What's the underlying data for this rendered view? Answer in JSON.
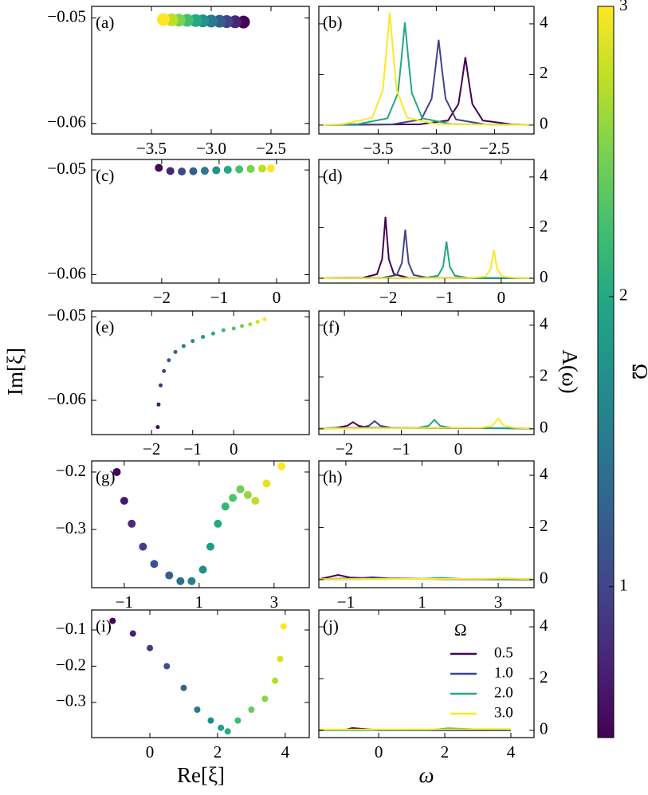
{
  "axis_labels": {
    "im": "Im[ξ]",
    "re": "Re[ξ]",
    "omega": "ω",
    "spectral": "A(ω)"
  },
  "chart_data": [
    {
      "type": "scatter",
      "label": "(a)",
      "x": [
        -2.73,
        -2.8,
        -2.87,
        -2.93,
        -3.0,
        -3.07,
        -3.13,
        -3.2,
        -3.27,
        -3.33,
        -3.4
      ],
      "y": [
        -0.05038,
        -0.05036,
        -0.05034,
        -0.05031,
        -0.05029,
        -0.05027,
        -0.05024,
        -0.05022,
        -0.0502,
        -0.05017,
        -0.05015
      ],
      "c": [
        0.5,
        0.75,
        1,
        1.25,
        1.5,
        1.75,
        2,
        2.25,
        2.5,
        2.75,
        3
      ],
      "xlim": [
        -4.0,
        -2.18
      ],
      "ylim": [
        -0.061,
        -0.0489
      ],
      "xticks": [
        {
          "value": -3.5,
          "label": "−3.5"
        },
        {
          "value": -3.0,
          "label": "−3.0"
        },
        {
          "value": -2.5,
          "label": "−2.5"
        }
      ],
      "yticks": [
        {
          "value": -0.06,
          "label": "−0.06"
        },
        {
          "value": -0.05,
          "label": "−0.05"
        }
      ]
    },
    {
      "type": "line",
      "label": "(b)",
      "series": [
        {
          "color": "#440154",
          "x": [
            -3.95,
            -3.15,
            -2.9,
            -2.81,
            -2.78,
            -2.75,
            -2.72,
            -2.69,
            -2.6,
            -2.35,
            -2.2
          ],
          "values": [
            0.01,
            0.03,
            0.18,
            0.83,
            1.72,
            2.68,
            1.72,
            0.83,
            0.18,
            0.03,
            0.01
          ]
        },
        {
          "color": "#414487",
          "x": [
            -3.95,
            -3.38,
            -3.13,
            -3.04,
            -3.01,
            -2.98,
            -2.95,
            -2.92,
            -2.83,
            -2.58,
            -2.2
          ],
          "values": [
            0.01,
            0.03,
            0.22,
            1.04,
            2.16,
            3.37,
            2.16,
            1.04,
            0.22,
            0.03,
            0.01
          ]
        },
        {
          "color": "#22a884",
          "x": [
            -3.95,
            -3.67,
            -3.42,
            -3.33,
            -3.3,
            -3.27,
            -3.24,
            -3.21,
            -3.12,
            -2.87,
            -2.2
          ],
          "values": [
            0.01,
            0.04,
            0.27,
            1.26,
            2.6,
            4.06,
            2.6,
            1.26,
            0.27,
            0.04,
            0.01
          ]
        },
        {
          "color": "#fde725",
          "x": [
            -3.95,
            -3.8,
            -3.55,
            -3.46,
            -3.43,
            -3.4,
            -3.37,
            -3.34,
            -3.25,
            -3.0,
            -2.2
          ],
          "values": [
            0.01,
            0.04,
            0.29,
            1.38,
            2.84,
            4.44,
            2.84,
            1.38,
            0.29,
            0.04,
            0.01
          ]
        }
      ],
      "xlim": [
        -4.01,
        -2.16
      ],
      "ylim": [
        -0.35,
        4.69
      ],
      "xticks": [
        {
          "value": -3.5,
          "label": "−3.5"
        },
        {
          "value": -3.0,
          "label": "−3.0"
        },
        {
          "value": -2.5,
          "label": "−2.5"
        }
      ],
      "yticks": [
        0,
        2,
        4
      ]
    },
    {
      "type": "scatter",
      "label": "(c)",
      "x": [
        -2.05,
        -1.85,
        -1.65,
        -1.45,
        -1.25,
        -1.05,
        -0.85,
        -0.65,
        -0.45,
        -0.25,
        -0.1
      ],
      "y": [
        -0.0498,
        -0.0501,
        -0.05015,
        -0.05012,
        -0.05008,
        -0.05003,
        -0.04998,
        -0.04994,
        -0.0499,
        -0.04987,
        -0.04985
      ],
      "c": [
        0.5,
        0.75,
        1,
        1.25,
        1.5,
        1.75,
        2,
        2.25,
        2.5,
        2.75,
        3
      ],
      "xlim": [
        -3.22,
        0.57
      ],
      "ylim": [
        -0.0608,
        -0.049
      ],
      "xticks": [
        {
          "value": -2,
          "label": "−2"
        },
        {
          "value": -1,
          "label": "−1"
        },
        0
      ],
      "yticks": [
        {
          "value": -0.06,
          "label": "−0.06"
        },
        {
          "value": -0.05,
          "label": "−0.05"
        }
      ]
    },
    {
      "type": "line",
      "label": "(d)",
      "series": [
        {
          "color": "#440154",
          "x": [
            -3.2,
            -2.45,
            -2.2,
            -2.11,
            -2.08,
            -2.05,
            -2.02,
            -1.99,
            -1.9,
            -1.65,
            0.55
          ],
          "values": [
            0,
            0.02,
            0.16,
            0.75,
            1.56,
            2.43,
            1.56,
            0.75,
            0.16,
            0.02,
            0
          ]
        },
        {
          "color": "#414487",
          "x": [
            -3.2,
            -2.1,
            -1.85,
            -1.76,
            -1.73,
            -1.7,
            -1.67,
            -1.64,
            -1.55,
            -1.3,
            0.55
          ],
          "values": [
            0,
            0.02,
            0.13,
            0.6,
            1.23,
            1.92,
            1.23,
            0.6,
            0.13,
            0.02,
            0
          ]
        },
        {
          "color": "#22a884",
          "x": [
            -3.2,
            -1.37,
            -1.12,
            -1.03,
            -1.0,
            -0.97,
            -0.94,
            -0.91,
            -0.82,
            -0.57,
            0.55
          ],
          "values": [
            0,
            0.01,
            0.1,
            0.45,
            0.93,
            1.45,
            0.93,
            0.45,
            0.1,
            0.01,
            0
          ]
        },
        {
          "color": "#fde725",
          "x": [
            -3.2,
            -0.53,
            -0.28,
            -0.19,
            -0.16,
            -0.13,
            -0.1,
            -0.07,
            0.02,
            0.27,
            0.55
          ],
          "values": [
            0,
            0.01,
            0.07,
            0.35,
            0.72,
            1.13,
            0.72,
            0.35,
            0.07,
            0.01,
            0
          ]
        }
      ],
      "xlim": [
        -3.23,
        0.58
      ],
      "ylim": [
        -0.19,
        4.69
      ],
      "xticks": [
        {
          "value": -2,
          "label": "−2"
        },
        {
          "value": -1,
          "label": "−1"
        },
        0
      ],
      "yticks": [
        0,
        2,
        4
      ]
    },
    {
      "type": "scatter",
      "label": "(e)",
      "x": [
        -1.85,
        -1.83,
        -1.78,
        -1.7,
        -1.58,
        -1.42,
        -1.22,
        -1.0,
        -0.75,
        -0.5,
        -0.25,
        0,
        0.2,
        0.4,
        0.58,
        0.75
      ],
      "y": [
        -0.0632,
        -0.0605,
        -0.0582,
        -0.0565,
        -0.0552,
        -0.0542,
        -0.0535,
        -0.0529,
        -0.0524,
        -0.052,
        -0.0516,
        -0.0514,
        -0.0511,
        -0.0509,
        -0.0506,
        -0.0503
      ],
      "c": [
        0.5,
        0.67,
        0.83,
        1,
        1.17,
        1.33,
        1.5,
        1.67,
        1.83,
        2,
        2.17,
        2.33,
        2.5,
        2.67,
        2.83,
        3
      ],
      "xlim": [
        -3.46,
        1.84
      ],
      "ylim": [
        -0.0641,
        -0.0493
      ],
      "xticks": [
        {
          "value": -2,
          "label": "−2"
        },
        {
          "value": -1,
          "label": "−1"
        },
        0
      ],
      "yticks": [
        {
          "value": -0.06,
          "label": "−0.06"
        },
        {
          "value": -0.05,
          "label": "−0.05"
        }
      ]
    },
    {
      "type": "line",
      "label": "(f)",
      "series": [
        {
          "color": "#440154",
          "x": [
            -2.45,
            -2.15,
            -1.95,
            -1.85,
            -1.75,
            -1.55,
            1.3
          ],
          "values": [
            0.02,
            0.04,
            0.12,
            0.26,
            0.12,
            0.04,
            0.02
          ]
        },
        {
          "color": "#414487",
          "x": [
            -2.45,
            -1.77,
            -1.57,
            -1.47,
            -1.37,
            -1.17,
            1.3
          ],
          "values": [
            0.02,
            0.04,
            0.12,
            0.3,
            0.12,
            0.04,
            0.02
          ]
        },
        {
          "color": "#22a884",
          "x": [
            -2.45,
            -0.72,
            -0.52,
            -0.42,
            -0.32,
            -0.12,
            1.3
          ],
          "values": [
            0.02,
            0.04,
            0.12,
            0.35,
            0.12,
            0.04,
            0.02
          ]
        },
        {
          "color": "#fde725",
          "x": [
            -2.45,
            0.4,
            0.6,
            0.7,
            0.8,
            1.0,
            1.3
          ],
          "values": [
            0.02,
            0.04,
            0.12,
            0.4,
            0.12,
            0.04,
            0.02
          ]
        }
      ],
      "xlim": [
        -2.45,
        1.33
      ],
      "ylim": [
        -0.22,
        4.55
      ],
      "xticks": [
        {
          "value": -2,
          "label": "−2"
        },
        {
          "value": -1,
          "label": "−1"
        },
        0
      ],
      "yticks": [
        0,
        2,
        4
      ]
    },
    {
      "type": "scatter",
      "label": "(g)",
      "x": [
        -1.2,
        -1.0,
        -0.8,
        -0.5,
        -0.2,
        0.2,
        0.5,
        0.8,
        1.1,
        1.3,
        1.5,
        1.7,
        1.9,
        2.1,
        2.3,
        2.5,
        2.8,
        3.2
      ],
      "y": [
        -0.2,
        -0.25,
        -0.29,
        -0.33,
        -0.36,
        -0.38,
        -0.39,
        -0.39,
        -0.37,
        -0.33,
        -0.29,
        -0.26,
        -0.245,
        -0.23,
        -0.24,
        -0.25,
        -0.22,
        -0.19
      ],
      "c": [
        0.5,
        0.65,
        0.8,
        0.95,
        1.1,
        1.25,
        1.4,
        1.55,
        1.7,
        1.85,
        2.0,
        2.15,
        2.3,
        2.45,
        2.6,
        2.75,
        2.9,
        3.0
      ],
      "xlim": [
        -1.87,
        3.94
      ],
      "ylim": [
        -0.4014,
        -0.1806
      ],
      "xticks": [
        {
          "value": -1,
          "label": "−1"
        },
        1,
        3
      ],
      "yticks": [
        {
          "value": -0.3,
          "label": "−0.3"
        },
        {
          "value": -0.2,
          "label": "−0.2"
        }
      ]
    },
    {
      "type": "line",
      "label": "(h)",
      "series": [
        {
          "color": "#440154",
          "x": [
            -1.7,
            -1.5,
            -1.2,
            -0.9,
            0,
            3.9
          ],
          "values": [
            0.02,
            0.08,
            0.18,
            0.08,
            0.03,
            0.01
          ]
        },
        {
          "color": "#414487",
          "x": [
            -1.7,
            -0.7,
            -0.3,
            0.1,
            1.5,
            3.9
          ],
          "values": [
            0.02,
            0.05,
            0.09,
            0.05,
            0.02,
            0.0
          ]
        },
        {
          "color": "#22a884",
          "x": [
            -1.7,
            1.0,
            1.5,
            2.0,
            3.9
          ],
          "values": [
            0.01,
            0.03,
            0.07,
            0.03,
            0.02
          ]
        },
        {
          "color": "#fde725",
          "x": [
            -1.7,
            2.5,
            3.1,
            3.9
          ],
          "values": [
            0.02,
            0.03,
            0.05,
            0.02
          ]
        }
      ],
      "xlim": [
        -1.71,
        3.94
      ],
      "ylim": [
        -0.31,
        4.55
      ],
      "xticks": [
        {
          "value": -1,
          "label": "−1"
        },
        1,
        3
      ],
      "yticks": [
        0,
        2,
        4
      ]
    },
    {
      "type": "scatter",
      "label": "(i)",
      "x": [
        -1.1,
        -0.5,
        0,
        0.5,
        1,
        1.4,
        1.8,
        2.1,
        2.3,
        2.6,
        3,
        3.4,
        3.7,
        3.85,
        3.95
      ],
      "y": [
        -0.075,
        -0.11,
        -0.15,
        -0.2,
        -0.26,
        -0.32,
        -0.35,
        -0.37,
        -0.38,
        -0.35,
        -0.32,
        -0.29,
        -0.24,
        -0.18,
        -0.09
      ],
      "c": [
        0.5,
        0.7,
        0.9,
        1.1,
        1.3,
        1.5,
        1.7,
        1.9,
        2.05,
        2.2,
        2.4,
        2.55,
        2.7,
        2.85,
        3.0
      ],
      "xlim": [
        -1.72,
        4.71
      ],
      "ylim": [
        -0.397,
        -0.045
      ],
      "xticks": [
        0,
        2,
        4
      ],
      "yticks": [
        {
          "value": -0.3,
          "label": "−0.3"
        },
        {
          "value": -0.2,
          "label": "−0.2"
        },
        {
          "value": -0.1,
          "label": "−0.1"
        }
      ]
    },
    {
      "type": "line",
      "label": "(j)",
      "legend": "upper right",
      "legend_title": "Ω",
      "series": [
        {
          "name": "0.5",
          "color": "#440154",
          "x": [
            -1.8,
            -1.0,
            -0.8,
            0,
            4
          ],
          "values": [
            0.02,
            0.02,
            0.09,
            0.01,
            0.0
          ]
        },
        {
          "name": "1.0",
          "color": "#414487",
          "x": [
            -1.8,
            -0.6,
            0,
            4
          ],
          "values": [
            0.01,
            0.04,
            0.0,
            0.0
          ]
        },
        {
          "name": "2.0",
          "color": "#22a884",
          "x": [
            -1.8,
            1.5,
            2.1,
            3,
            4
          ],
          "values": [
            0.0,
            0.01,
            0.08,
            0.04,
            0.02
          ]
        },
        {
          "name": "3.0",
          "color": "#fde725",
          "x": [
            -1.8,
            2,
            4
          ],
          "values": [
            0.03,
            0.04,
            0.05
          ]
        }
      ],
      "xlim": [
        -1.81,
        4.7
      ],
      "ylim": [
        -0.28,
        4.65
      ],
      "xticks": [
        0,
        2,
        4
      ],
      "yticks": [
        0,
        2,
        4
      ]
    },
    {
      "type": "colorbar",
      "label": "Ω",
      "colormap": "viridis",
      "clim": [
        0.48,
        3
      ],
      "ticks": [
        1,
        2,
        3
      ]
    }
  ]
}
